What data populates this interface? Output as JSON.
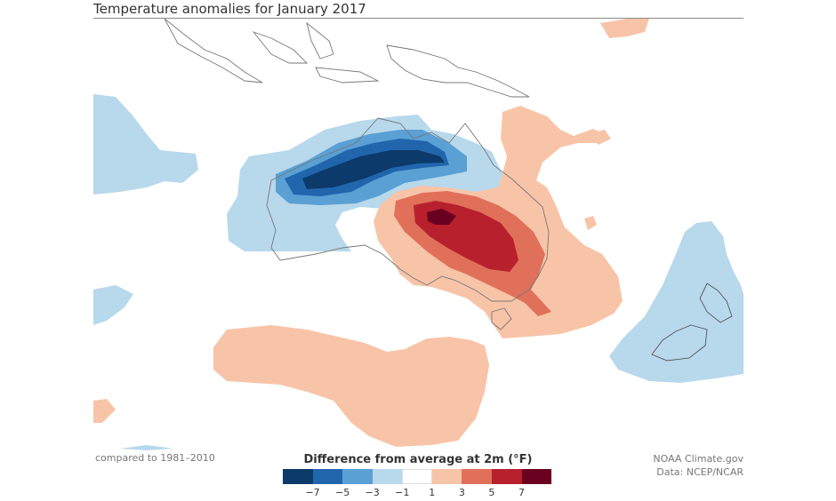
{
  "title": "Temperature anomalies for January 2017",
  "legend": {
    "title": "Difference from average at 2m (°F)",
    "colors": [
      "#0b3a6b",
      "#2166ac",
      "#5aa0d4",
      "#b8d8ec",
      "#ffffff",
      "#f8c4a8",
      "#e0705a",
      "#b8202e",
      "#6a0020"
    ],
    "ticks": [
      "−7",
      "−5",
      "−3",
      "−1",
      "1",
      "3",
      "5",
      "7"
    ]
  },
  "baseline_note": "compared to 1981–2010",
  "credit": {
    "line1": "NOAA Climate.gov",
    "line2": "Data: NCEP/NCAR"
  }
}
